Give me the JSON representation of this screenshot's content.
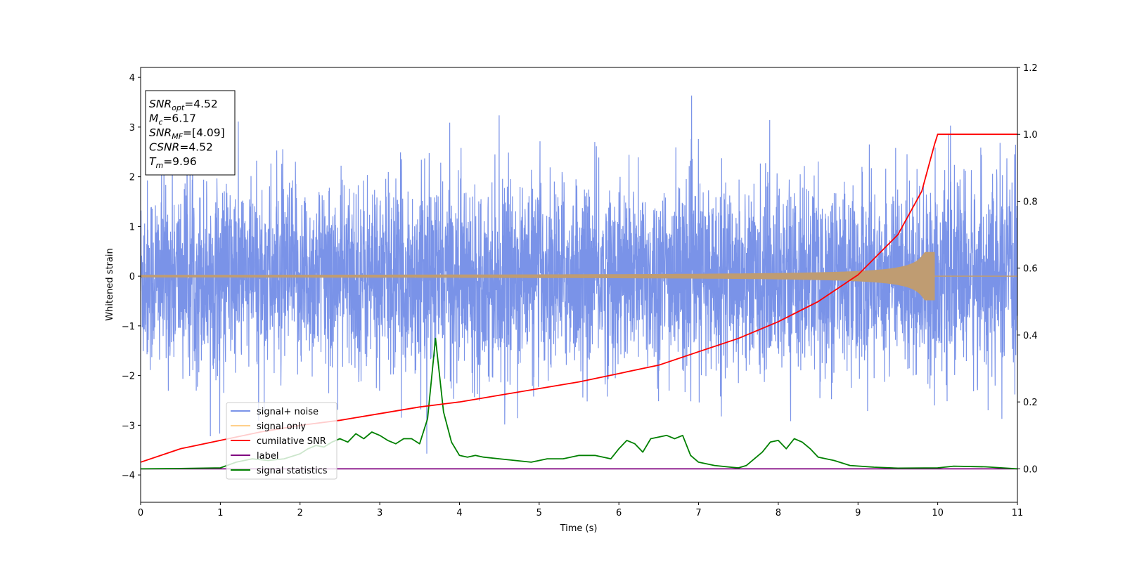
{
  "chart_data": {
    "type": "line",
    "xlabel": "Time (s)",
    "ylabel": "Whitened strain",
    "xlim": [
      0,
      11
    ],
    "ylim": [
      -4.55,
      4.2
    ],
    "y2lim": [
      -0.1,
      1.2
    ],
    "x_ticks": [
      0,
      1,
      2,
      3,
      4,
      5,
      6,
      7,
      8,
      9,
      10,
      11
    ],
    "x_tick_labels": [
      "0",
      "1",
      "2",
      "3",
      "4",
      "5",
      "6",
      "7",
      "8",
      "9",
      "10",
      "11"
    ],
    "y_ticks": [
      -4,
      -3,
      -2,
      -1,
      0,
      1,
      2,
      3,
      4
    ],
    "y_tick_labels": [
      "−4",
      "−3",
      "−2",
      "−1",
      "0",
      "1",
      "2",
      "3",
      "4"
    ],
    "y2_ticks": [
      0.0,
      0.2,
      0.4,
      0.6,
      0.8,
      1.0,
      1.2
    ],
    "y2_tick_labels": [
      "0.0",
      "0.2",
      "0.4",
      "0.6",
      "0.8",
      "1.0",
      "1.2"
    ],
    "grid": false,
    "legend_position": "lower-left",
    "colors": {
      "signal_noise": "#7a93e8",
      "signal_only": "#ffd08a",
      "overlap": "#bf9c72",
      "cumulative_snr": "#ff0000",
      "label": "#800080",
      "signal_statistics": "#008000"
    },
    "annotation": {
      "lines": [
        {
          "sym": "SNR",
          "sub": "opt",
          "value": "=4.52"
        },
        {
          "sym": "M",
          "sub": "c",
          "value": "=6.17"
        },
        {
          "sym": "SNR",
          "sub": "MF",
          "value": "=[4.09]"
        },
        {
          "sym": "CSNR",
          "sub": "",
          "value": "=4.52"
        },
        {
          "sym": "T",
          "sub": "m",
          "value": "=9.96"
        }
      ]
    },
    "series": [
      {
        "name": "signal+ noise",
        "axis": "left",
        "style": "noise",
        "description_values": {
          "t_start": 0,
          "t_end": 11,
          "std": 1.0,
          "max_spike": 3.78,
          "min_spike": -4.15
        }
      },
      {
        "name": "signal only",
        "axis": "left",
        "style": "chirp",
        "values": {
          "t_start": 0,
          "t_merger": 9.96,
          "amp_start": 0.02,
          "amp_peak": 0.48
        }
      },
      {
        "name": "cumilative SNR",
        "axis": "right",
        "x": [
          0,
          0.5,
          1,
          1.5,
          2,
          2.5,
          3,
          3.5,
          4,
          4.5,
          5,
          5.5,
          6,
          6.5,
          7,
          7.5,
          8,
          8.5,
          9,
          9.5,
          9.8,
          9.96,
          10.0,
          11.0
        ],
        "values": [
          0.02,
          0.06,
          0.085,
          0.11,
          0.13,
          0.145,
          0.165,
          0.185,
          0.2,
          0.22,
          0.24,
          0.26,
          0.285,
          0.31,
          0.35,
          0.39,
          0.44,
          0.5,
          0.58,
          0.7,
          0.83,
          0.97,
          1.0,
          1.0
        ]
      },
      {
        "name": "label",
        "axis": "right",
        "x": [
          0,
          11
        ],
        "values": [
          0.0,
          0.0
        ]
      },
      {
        "name": "signal statistics",
        "axis": "right",
        "x": [
          0,
          0.5,
          1,
          1.2,
          1.4,
          1.6,
          1.8,
          2.0,
          2.1,
          2.2,
          2.3,
          2.4,
          2.5,
          2.6,
          2.7,
          2.8,
          2.9,
          3.0,
          3.1,
          3.2,
          3.3,
          3.4,
          3.5,
          3.6,
          3.7,
          3.8,
          3.9,
          4.0,
          4.1,
          4.2,
          4.3,
          4.5,
          4.7,
          4.9,
          5.1,
          5.3,
          5.5,
          5.7,
          5.9,
          6.0,
          6.1,
          6.2,
          6.3,
          6.4,
          6.5,
          6.6,
          6.7,
          6.8,
          6.9,
          7.0,
          7.2,
          7.4,
          7.5,
          7.6,
          7.7,
          7.8,
          7.9,
          8.0,
          8.1,
          8.2,
          8.3,
          8.4,
          8.5,
          8.7,
          8.9,
          9.2,
          9.5,
          10.0,
          10.2,
          10.6,
          11.0
        ],
        "values": [
          0.0,
          0.001,
          0.003,
          0.02,
          0.03,
          0.025,
          0.03,
          0.045,
          0.06,
          0.07,
          0.065,
          0.08,
          0.09,
          0.08,
          0.105,
          0.09,
          0.11,
          0.1,
          0.085,
          0.075,
          0.09,
          0.09,
          0.075,
          0.15,
          0.39,
          0.17,
          0.08,
          0.04,
          0.035,
          0.04,
          0.035,
          0.03,
          0.025,
          0.02,
          0.03,
          0.03,
          0.04,
          0.04,
          0.03,
          0.06,
          0.085,
          0.075,
          0.05,
          0.09,
          0.095,
          0.1,
          0.09,
          0.1,
          0.04,
          0.02,
          0.01,
          0.005,
          0.003,
          0.01,
          0.03,
          0.05,
          0.08,
          0.085,
          0.06,
          0.09,
          0.08,
          0.06,
          0.035,
          0.025,
          0.01,
          0.005,
          0.002,
          0.003,
          0.008,
          0.006,
          0.0
        ]
      }
    ]
  }
}
